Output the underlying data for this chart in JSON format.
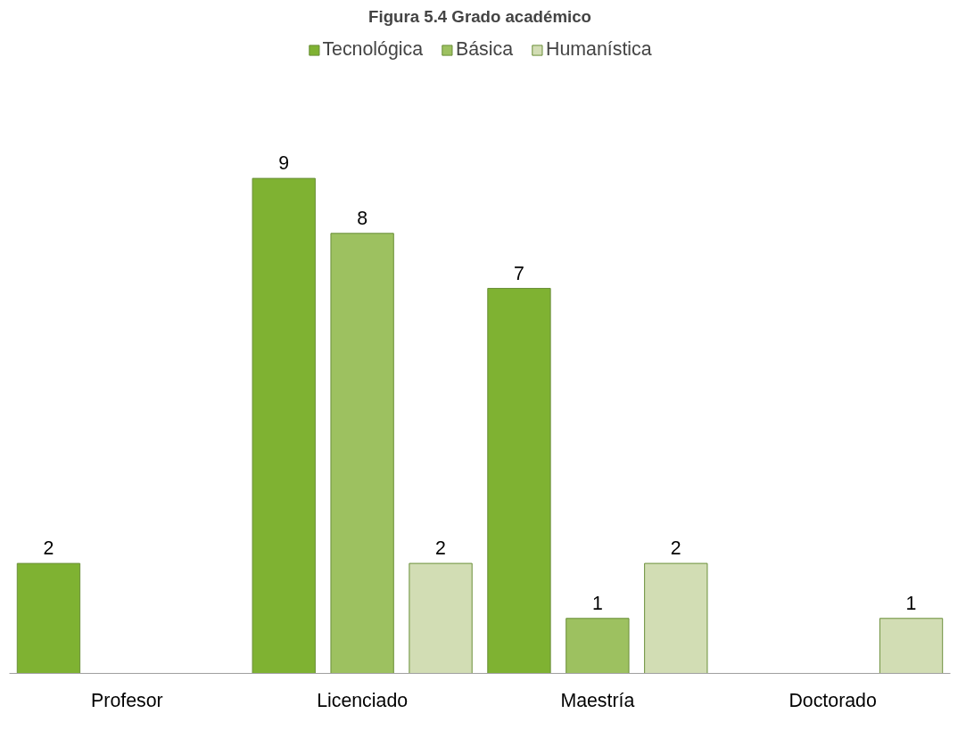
{
  "chart_data": {
    "type": "bar",
    "title": "Figura 5.4 Grado académico",
    "categories": [
      "Profesor",
      "Licenciado",
      "Maestría",
      "Doctorado"
    ],
    "series": [
      {
        "name": "Tecnológica",
        "color": "#7fb232",
        "values": [
          2,
          9,
          7,
          null
        ]
      },
      {
        "name": "Básica",
        "color": "#9dc160",
        "values": [
          null,
          8,
          1,
          null
        ]
      },
      {
        "name": "Humanística",
        "color": "#d2ddb4",
        "values": [
          null,
          2,
          2,
          1
        ]
      }
    ],
    "data_labels": true,
    "legend": "top"
  }
}
